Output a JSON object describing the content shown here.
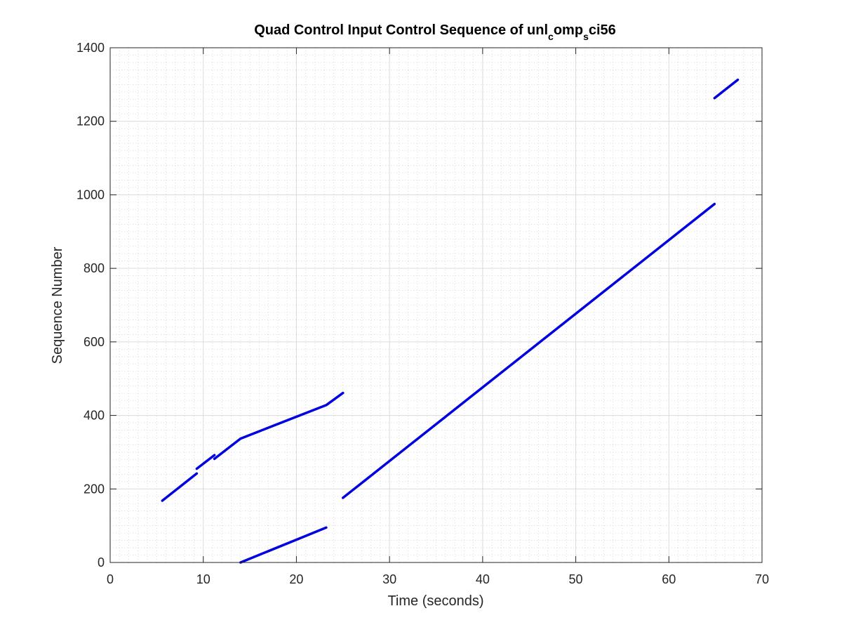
{
  "chart_data": {
    "type": "line",
    "title": "Quad Control Input Control Sequence of unl_comp_sci56",
    "title_parts": {
      "base": "Quad Control Input Control Sequence of unl",
      "sub1": "c",
      "mid": "omp",
      "sub2": "s",
      "tail": "ci56"
    },
    "xlabel": "Time (seconds)",
    "ylabel": "Sequence Number",
    "xlim": [
      0,
      70
    ],
    "ylim": [
      0,
      1400
    ],
    "xticks": [
      0,
      10,
      20,
      30,
      40,
      50,
      60,
      70
    ],
    "yticks": [
      0,
      200,
      400,
      600,
      800,
      1000,
      1200,
      1400
    ],
    "grid": true,
    "minor_grid": true,
    "line_color": "#0000e0",
    "series": [
      {
        "points": [
          [
            5.6,
            168
          ],
          [
            9.3,
            242
          ]
        ]
      },
      {
        "points": [
          [
            9.3,
            255
          ],
          [
            11.2,
            292
          ]
        ]
      },
      {
        "points": [
          [
            11.2,
            282
          ],
          [
            14.0,
            337
          ],
          [
            23.2,
            428
          ],
          [
            25.0,
            461
          ]
        ]
      },
      {
        "points": [
          [
            14.0,
            0
          ],
          [
            23.2,
            95
          ]
        ]
      },
      {
        "points": [
          [
            25.0,
            176
          ],
          [
            64.9,
            975
          ]
        ]
      },
      {
        "points": [
          [
            64.9,
            1263
          ],
          [
            67.4,
            1313
          ]
        ]
      }
    ]
  }
}
